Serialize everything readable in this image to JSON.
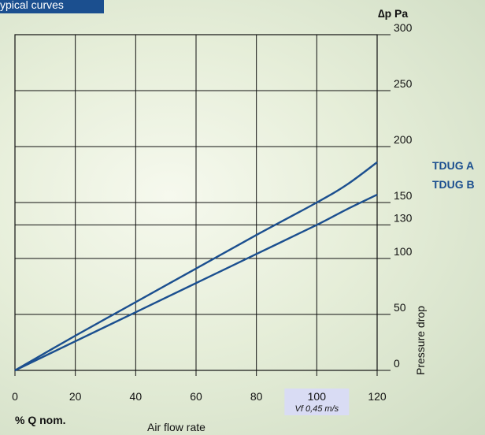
{
  "header": {
    "title": "ypical curves"
  },
  "chart_data": {
    "type": "line",
    "title": "",
    "xlabel": "Air flow rate",
    "x_unit_label": "% Q nom.",
    "ylabel": "Pressure drop",
    "y_unit_label": "∆p Pa",
    "xlim": [
      0,
      120
    ],
    "ylim": [
      0,
      300
    ],
    "x_ticks": [
      0,
      20,
      40,
      60,
      80,
      100,
      120
    ],
    "y_ticks": [
      0,
      50,
      100,
      130,
      150,
      200,
      250,
      300
    ],
    "grid": true,
    "x_note": {
      "x": 100,
      "label": "Vf 0,45 m/s",
      "highlight": "#d9dcf4"
    },
    "legend_placement": "right",
    "series": [
      {
        "name": "TDUG A",
        "color": "#1b4f8f",
        "x": [
          0,
          20,
          40,
          60,
          80,
          100,
          110,
          120
        ],
        "y": [
          0,
          31,
          61,
          91,
          121,
          150,
          166,
          186
        ]
      },
      {
        "name": "TDUG B",
        "color": "#1b4f8f",
        "x": [
          0,
          20,
          40,
          60,
          80,
          100,
          110,
          120
        ],
        "y": [
          0,
          26,
          52,
          78,
          104,
          130,
          144,
          157
        ]
      }
    ]
  }
}
